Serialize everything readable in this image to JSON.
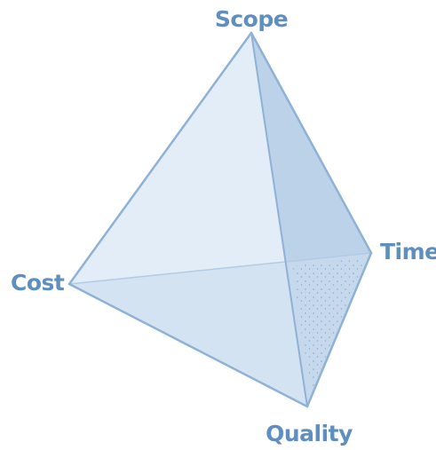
{
  "diagram": {
    "labels": {
      "scope": "Scope",
      "time": "Time",
      "cost": "Cost",
      "quality": "Quality"
    },
    "colors": {
      "label": "#5f8fc0",
      "edge": "#8fb1d6",
      "face_left": "#e3edf7",
      "face_front": "#d4e3f2",
      "face_right": "#bcd2e9",
      "face_bottom": "#c6d9ec",
      "hidden_edge": "#b2cbe4",
      "stipple": "#7fa3c9",
      "background": "#ffffff"
    }
  }
}
